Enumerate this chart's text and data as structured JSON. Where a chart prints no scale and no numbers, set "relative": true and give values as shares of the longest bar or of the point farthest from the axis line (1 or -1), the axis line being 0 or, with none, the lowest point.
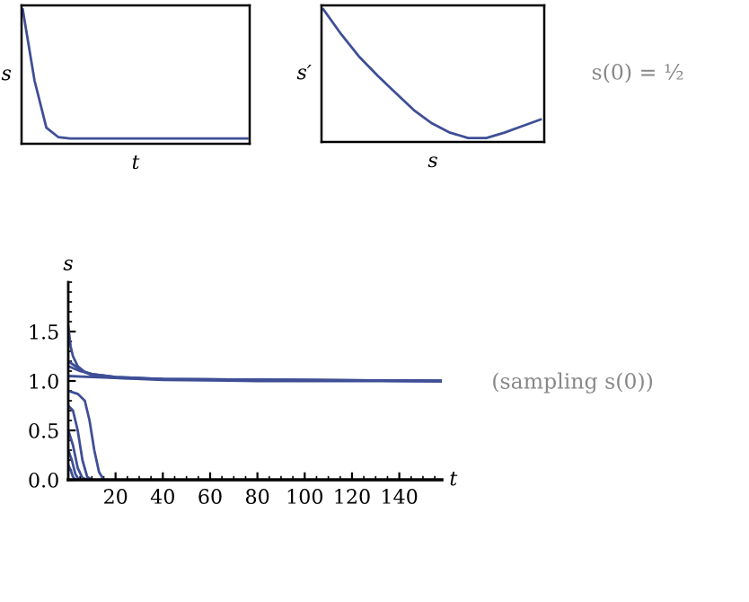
{
  "chart_data": [
    {
      "type": "line",
      "relative": true,
      "xlabel": "t",
      "ylabel": "s",
      "categories": [
        null,
        null,
        null,
        null,
        null,
        null,
        null,
        null,
        null,
        null,
        null,
        null,
        null,
        null,
        null,
        null,
        null,
        null,
        null,
        null
      ],
      "series": [
        {
          "color": "#3f4f96",
          "values": [
            1.0,
            0.47,
            0.12,
            0.05,
            0.04,
            0.04,
            0.04,
            0.04,
            0.04,
            0.04,
            0.04,
            0.04,
            0.04,
            0.04,
            0.04,
            0.04,
            0.04,
            0.04,
            0.04,
            0.04
          ]
        }
      ],
      "grid": false,
      "legend": false
    },
    {
      "type": "line",
      "relative": true,
      "xlabel": "s",
      "ylabel": "s′",
      "categories": [
        null,
        null,
        null,
        null,
        null,
        null,
        null,
        null,
        null,
        null,
        null,
        null,
        null
      ],
      "series": [
        {
          "color": "#3f4f96",
          "values": [
            1.0,
            0.81,
            0.64,
            0.5,
            0.37,
            0.24,
            0.14,
            0.07,
            0.03,
            0.03,
            0.07,
            0.12,
            0.17
          ]
        }
      ],
      "grid": false,
      "legend": false,
      "annotations": [
        "s(0) = ½"
      ]
    },
    {
      "type": "line",
      "xlabel": "t",
      "ylabel": "s",
      "xlim": [
        0,
        158
      ],
      "ylim": [
        0,
        2.0
      ],
      "xticks": [
        20,
        40,
        60,
        80,
        100,
        120,
        140
      ],
      "yticks": [
        {
          "value": 0,
          "label": "0.0"
        },
        {
          "value": 0.5,
          "label": "0.5"
        },
        {
          "value": 1.0,
          "label": "1.0"
        },
        {
          "value": 1.5,
          "label": "1.5"
        }
      ],
      "grid": false,
      "legend": false,
      "series": [
        {
          "color": "#3f4f96",
          "x": [
            0,
            1,
            2,
            4,
            7,
            10,
            20,
            40,
            80,
            158
          ],
          "values": [
            1.55,
            1.35,
            1.25,
            1.15,
            1.09,
            1.06,
            1.03,
            1.01,
            1.0,
            1.0
          ]
        },
        {
          "color": "#3f4f96",
          "x": [
            0,
            3,
            6,
            10,
            20,
            40,
            158
          ],
          "values": [
            1.2,
            1.15,
            1.1,
            1.07,
            1.04,
            1.02,
            1.0
          ]
        },
        {
          "color": "#3f4f96",
          "x": [
            0,
            5,
            10,
            20,
            40,
            158
          ],
          "values": [
            1.15,
            1.1,
            1.07,
            1.04,
            1.02,
            1.0
          ]
        },
        {
          "color": "#3f4f96",
          "x": [
            0,
            10,
            20,
            40,
            158
          ],
          "values": [
            1.05,
            1.04,
            1.03,
            1.02,
            1.0
          ]
        },
        {
          "color": "#3f4f96",
          "x": [
            0,
            4,
            7,
            9,
            11,
            13,
            15
          ],
          "values": [
            0.9,
            0.87,
            0.8,
            0.6,
            0.3,
            0.08,
            0
          ]
        },
        {
          "color": "#3f4f96",
          "x": [
            0,
            2,
            4,
            6,
            8,
            10
          ],
          "values": [
            0.75,
            0.7,
            0.5,
            0.2,
            0.03,
            0
          ]
        },
        {
          "color": "#3f4f96",
          "x": [
            0,
            2,
            4,
            6,
            8
          ],
          "values": [
            0.5,
            0.35,
            0.12,
            0.02,
            0
          ]
        },
        {
          "color": "#3f4f96",
          "x": [
            0,
            1.5,
            3,
            4.5
          ],
          "values": [
            0.3,
            0.2,
            0.06,
            0
          ]
        },
        {
          "color": "#3f4f96",
          "x": [
            0,
            1,
            2,
            3
          ],
          "values": [
            0.15,
            0.1,
            0.03,
            0
          ]
        }
      ],
      "annotations": [
        "(sampling s(0))"
      ]
    }
  ]
}
